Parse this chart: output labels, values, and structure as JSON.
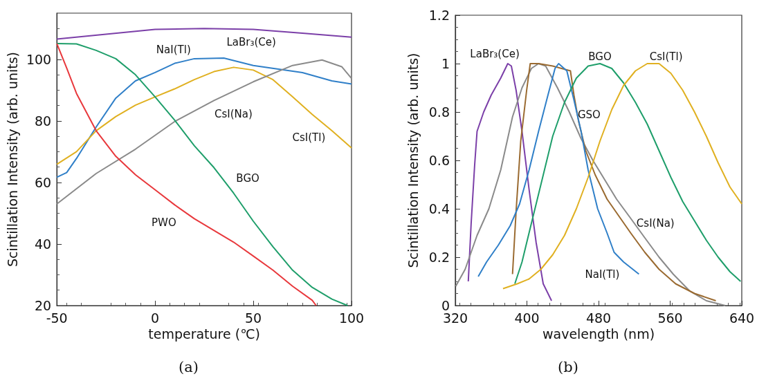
{
  "chart_data": [
    {
      "type": "line",
      "title": "(a)",
      "xlabel": "temperature (℃)",
      "ylabel": "Scintillation Intensity (arb. units)",
      "xlim": [
        -50,
        100
      ],
      "xticks": [
        -50,
        0,
        50,
        100
      ],
      "ylim": [
        20,
        115
      ],
      "yticks": [
        20,
        40,
        60,
        80,
        100
      ],
      "marker": "none",
      "series": [
        {
          "name": "LaBr₃(Ce)",
          "color": "#7b3fa8",
          "x": [
            -50,
            0,
            25,
            50,
            75,
            100
          ],
          "values": [
            106.6,
            109.7,
            110,
            109.7,
            108.5,
            107.2
          ]
        },
        {
          "name": "NaI(Tl)",
          "color": "#2f7fc8",
          "x": [
            -50,
            -45,
            -40,
            -30,
            -20,
            -10,
            0,
            10,
            20,
            35,
            50,
            75,
            90,
            100
          ],
          "values": [
            61.7,
            63.2,
            67.8,
            78,
            87.4,
            93,
            95.7,
            98.7,
            100.2,
            100.4,
            98,
            95.7,
            93,
            92
          ]
        },
        {
          "name": "CsI(Tl)",
          "color": "#e0b020",
          "x": [
            -50,
            -40,
            -30,
            -20,
            -10,
            0,
            10,
            20,
            30,
            40,
            50,
            60,
            70,
            80,
            90,
            100
          ],
          "values": [
            65.9,
            70,
            76.8,
            81.4,
            85.1,
            87.8,
            90.4,
            93.4,
            96,
            97.4,
            96.5,
            93.4,
            87.8,
            82.1,
            76.8,
            71.2
          ]
        },
        {
          "name": "CsI(Na)",
          "color": "#8a8a8a",
          "x": [
            -50,
            -30,
            -10,
            10,
            30,
            50,
            70,
            85,
            95,
            100
          ],
          "values": [
            53,
            62.9,
            70.8,
            79.8,
            86.6,
            92.7,
            98,
            99.8,
            97.6,
            93.8
          ]
        },
        {
          "name": "BGO",
          "color": "#1e9e6a",
          "x": [
            -50,
            -40,
            -30,
            -20,
            -10,
            0,
            10,
            20,
            30,
            40,
            50,
            60,
            70,
            80,
            90,
            98
          ],
          "values": [
            105.1,
            105,
            102.9,
            100.2,
            95,
            87.8,
            80.2,
            71.9,
            64.8,
            56.5,
            47.4,
            39.1,
            31.5,
            25.9,
            22.1,
            20
          ]
        },
        {
          "name": "PWO",
          "color": "#e8383c",
          "x": [
            -50,
            -45,
            -40,
            -30,
            -20,
            -10,
            0,
            10,
            20,
            30,
            40,
            50,
            60,
            70,
            80,
            82
          ],
          "values": [
            105.1,
            97.2,
            88.9,
            76.8,
            68.5,
            62.5,
            57.6,
            52.7,
            48.2,
            44.4,
            40.6,
            36.1,
            31.5,
            26.3,
            21.7,
            20
          ]
        }
      ]
    },
    {
      "type": "line",
      "title": "(b)",
      "xlabel": "wavelength (nm)",
      "ylabel": "Scintillation Intensity (arb. units)",
      "xlim": [
        320,
        640
      ],
      "xticks": [
        320,
        400,
        480,
        560,
        640
      ],
      "ylim": [
        0,
        1.2
      ],
      "yticks": [
        0,
        0.2,
        0.4,
        0.6,
        0.8,
        1,
        1.2
      ],
      "marker": "none",
      "series": [
        {
          "name": "LaBr₃(Ce)",
          "color": "#7b3fa8",
          "x": [
            334.5,
            337.7,
            341.6,
            344.3,
            351.7,
            360.1,
            370.7,
            378.6,
            382.6,
            387.9,
            394.5,
            402.4,
            410.3,
            418.2,
            427.5
          ],
          "values": [
            0.1,
            0.34,
            0.58,
            0.72,
            0.8,
            0.87,
            0.94,
            1,
            0.99,
            0.89,
            0.72,
            0.48,
            0.26,
            0.09,
            0.02
          ]
        },
        {
          "name": "CsI(Na)",
          "color": "#8a8a8a",
          "x": [
            320.5,
            331,
            344.3,
            357.5,
            370.7,
            383.9,
            394.5,
            405,
            413,
            420.9,
            434.1,
            447.3,
            460.5,
            473.7,
            486.9,
            500.1,
            516,
            531.7,
            547.6,
            563.4,
            581.9,
            600.4,
            621.5
          ],
          "values": [
            0.08,
            0.15,
            0.29,
            0.4,
            0.56,
            0.78,
            0.9,
            0.98,
            1,
            0.99,
            0.9,
            0.8,
            0.69,
            0.6,
            0.52,
            0.44,
            0.36,
            0.28,
            0.2,
            0.13,
            0.06,
            0.02,
            0
          ]
        },
        {
          "name": "GSO",
          "color": "#9a6a30",
          "x": [
            383.9,
            387.9,
            393.1,
            399.7,
            403.7,
            413,
            428.8,
            448.6,
            452.5,
            457.8,
            465.7,
            476.3,
            489.5,
            502.7,
            515.9,
            531.7,
            547.6,
            566.1,
            587.2,
            611
          ],
          "values": [
            0.13,
            0.39,
            0.68,
            0.89,
            1,
            1,
            0.99,
            0.97,
            0.87,
            0.76,
            0.64,
            0.54,
            0.44,
            0.37,
            0.3,
            0.22,
            0.15,
            0.09,
            0.05,
            0.02
          ]
        },
        {
          "name": "NaI(Tl)",
          "color": "#2f7fc8",
          "x": [
            345.6,
            354.9,
            368.1,
            381.3,
            391.8,
            402.4,
            413,
            423.5,
            431.4,
            435.4,
            444.6,
            452.5,
            460.5,
            468.4,
            479,
            489.5,
            497.4,
            508,
            525.1
          ],
          "values": [
            0.12,
            0.18,
            0.25,
            0.33,
            0.42,
            0.56,
            0.72,
            0.87,
            0.98,
            1,
            0.97,
            0.85,
            0.72,
            0.56,
            0.4,
            0.3,
            0.22,
            0.18,
            0.13
          ]
        },
        {
          "name": "BGO",
          "color": "#1e9e6a",
          "x": [
            386.5,
            394.5,
            405,
            415.6,
            428.8,
            442,
            455.2,
            468.4,
            481.6,
            494.8,
            508,
            521.2,
            534.4,
            547.6,
            560.8,
            574,
            587.2,
            600.4,
            613.6,
            626.8,
            638.7
          ],
          "values": [
            0.09,
            0.18,
            0.34,
            0.5,
            0.7,
            0.84,
            0.94,
            0.99,
            1,
            0.98,
            0.92,
            0.84,
            0.75,
            0.64,
            0.53,
            0.43,
            0.35,
            0.27,
            0.2,
            0.14,
            0.1
          ]
        },
        {
          "name": "CsI(Tl)",
          "color": "#e0b020",
          "x": [
            373.3,
            389.2,
            402.4,
            415.6,
            428.8,
            442,
            455.2,
            468.4,
            481.6,
            494.8,
            508,
            521.2,
            534.4,
            547.6,
            560.8,
            574,
            587.2,
            600.4,
            613.6,
            626.8,
            640
          ],
          "values": [
            0.07,
            0.09,
            0.11,
            0.15,
            0.21,
            0.29,
            0.4,
            0.53,
            0.68,
            0.81,
            0.91,
            0.97,
            1,
            1,
            0.96,
            0.89,
            0.8,
            0.7,
            0.59,
            0.49,
            0.42
          ]
        }
      ]
    }
  ]
}
